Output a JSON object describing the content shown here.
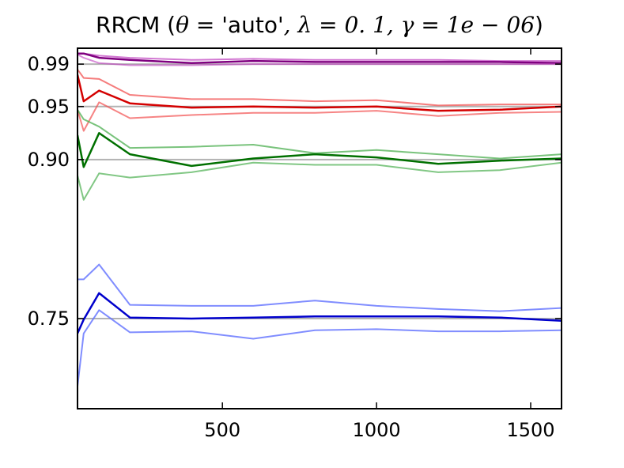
{
  "chart_data": {
    "type": "line",
    "title": "RRCM (θ = 'auto', λ = 0.1, γ = 1e − 06)",
    "title_parts": {
      "prefix": "RRCM (",
      "theta": "θ",
      "eq": " = ",
      "theta_val": "'auto'",
      "sep1": ", ",
      "lambda": "λ",
      "lambda_val": "0. 1",
      "sep2": ", ",
      "gamma": "γ",
      "gamma_val": "1e − 06",
      "suffix": ")"
    },
    "xlabel": "",
    "ylabel": "",
    "xlim": [
      30,
      1600
    ],
    "ylim": [
      0.665,
      1.005
    ],
    "x_ticks": [
      500,
      1000,
      1500
    ],
    "x_tick_labels": [
      "500",
      "1000",
      "1500"
    ],
    "y_ticks": [
      0.75,
      0.9,
      0.95,
      0.99
    ],
    "y_tick_labels": [
      "0.75",
      "0.90",
      "0.95",
      "0.99"
    ],
    "reference_lines": [
      0.75,
      0.9,
      0.95,
      0.99
    ],
    "grid": false,
    "x": [
      30,
      50,
      100,
      200,
      400,
      600,
      800,
      1000,
      1200,
      1400,
      1600
    ],
    "series": [
      {
        "group": "0.99",
        "role": "upper",
        "color": "#bf3fbf",
        "opacity": 0.7,
        "width": 2,
        "values": [
          1.0,
          1.0,
          0.998,
          0.996,
          0.994,
          0.995,
          0.994,
          0.994,
          0.994,
          0.993,
          0.993
        ]
      },
      {
        "group": "0.99",
        "role": "mean",
        "color": "#800080",
        "opacity": 1.0,
        "width": 2.5,
        "values": [
          1.0,
          1.0,
          0.996,
          0.994,
          0.991,
          0.993,
          0.992,
          0.992,
          0.992,
          0.992,
          0.991
        ]
      },
      {
        "group": "0.99",
        "role": "lower",
        "color": "#bf3fbf",
        "opacity": 0.6,
        "width": 2,
        "values": [
          0.999,
          0.996,
          0.991,
          0.989,
          0.989,
          0.99,
          0.99,
          0.99,
          0.99,
          0.99,
          0.99
        ]
      },
      {
        "group": "0.95",
        "role": "upper",
        "color": "#f25050",
        "opacity": 0.75,
        "width": 2,
        "values": [
          0.985,
          0.977,
          0.976,
          0.961,
          0.957,
          0.957,
          0.955,
          0.956,
          0.951,
          0.952,
          0.952
        ]
      },
      {
        "group": "0.95",
        "role": "mean",
        "color": "#d40000",
        "opacity": 1.0,
        "width": 2.5,
        "values": [
          0.98,
          0.955,
          0.965,
          0.953,
          0.949,
          0.95,
          0.949,
          0.95,
          0.946,
          0.947,
          0.95
        ]
      },
      {
        "group": "0.95",
        "role": "lower",
        "color": "#f25050",
        "opacity": 0.7,
        "width": 2,
        "values": [
          0.947,
          0.927,
          0.954,
          0.939,
          0.942,
          0.944,
          0.944,
          0.946,
          0.941,
          0.944,
          0.945
        ]
      },
      {
        "group": "0.90",
        "role": "upper",
        "color": "#4caf50",
        "opacity": 0.75,
        "width": 2,
        "values": [
          0.947,
          0.938,
          0.931,
          0.911,
          0.912,
          0.914,
          0.906,
          0.909,
          0.905,
          0.901,
          0.905
        ]
      },
      {
        "group": "0.90",
        "role": "mean",
        "color": "#007000",
        "opacity": 1.0,
        "width": 2.5,
        "values": [
          0.923,
          0.893,
          0.925,
          0.905,
          0.894,
          0.901,
          0.905,
          0.902,
          0.896,
          0.899,
          0.901
        ]
      },
      {
        "group": "0.90",
        "role": "lower",
        "color": "#4caf50",
        "opacity": 0.7,
        "width": 2,
        "values": [
          0.885,
          0.862,
          0.887,
          0.883,
          0.888,
          0.897,
          0.895,
          0.895,
          0.888,
          0.89,
          0.897
        ]
      },
      {
        "group": "0.75",
        "role": "upper",
        "color": "#6070ff",
        "opacity": 0.8,
        "width": 2,
        "values": [
          0.787,
          0.787,
          0.801,
          0.763,
          0.762,
          0.762,
          0.767,
          0.762,
          0.759,
          0.757,
          0.76
        ]
      },
      {
        "group": "0.75",
        "role": "mean",
        "color": "#0000cc",
        "opacity": 1.0,
        "width": 2.5,
        "values": [
          0.736,
          0.749,
          0.774,
          0.751,
          0.75,
          0.751,
          0.752,
          0.752,
          0.752,
          0.751,
          0.748
        ]
      },
      {
        "group": "0.75",
        "role": "lower",
        "color": "#6070ff",
        "opacity": 0.8,
        "width": 2,
        "values": [
          0.686,
          0.736,
          0.758,
          0.737,
          0.738,
          0.731,
          0.739,
          0.74,
          0.738,
          0.738,
          0.739
        ]
      }
    ]
  }
}
